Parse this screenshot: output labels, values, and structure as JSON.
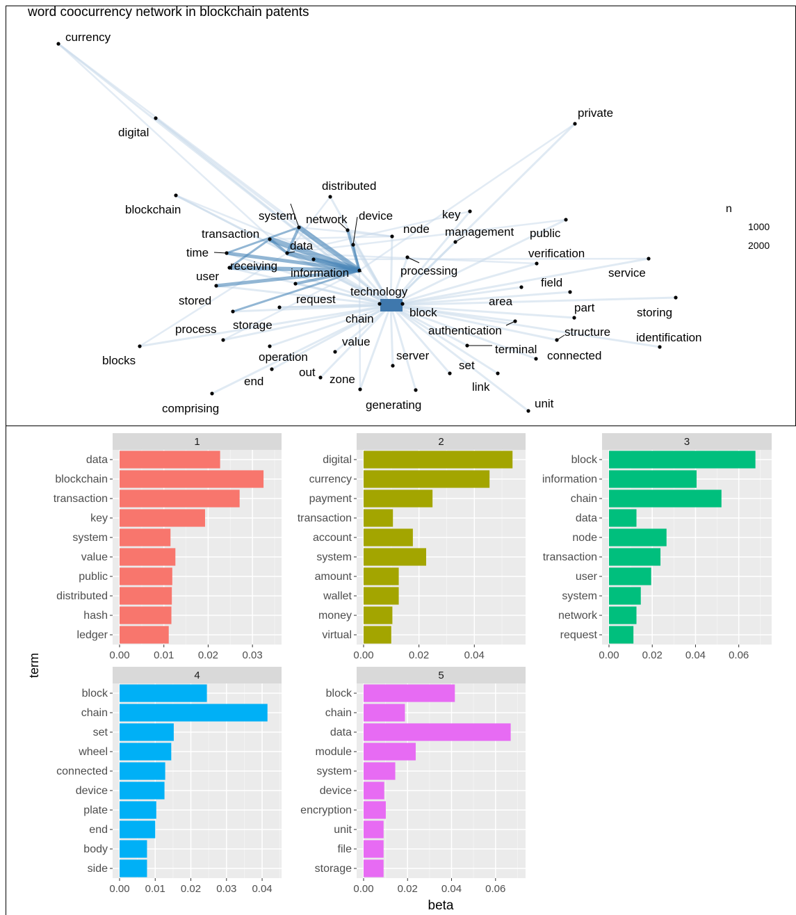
{
  "network": {
    "title": "word coocurrency network in blockchain patents",
    "legend_title": "n",
    "legend_values": [
      "1000",
      "2000"
    ],
    "nodes": [
      {
        "label": "currency"
      },
      {
        "label": "digital"
      },
      {
        "label": "private"
      },
      {
        "label": "distributed"
      },
      {
        "label": "blockchain"
      },
      {
        "label": "system"
      },
      {
        "label": "network"
      },
      {
        "label": "device"
      },
      {
        "label": "key"
      },
      {
        "label": "node"
      },
      {
        "label": "management"
      },
      {
        "label": "public"
      },
      {
        "label": "transaction"
      },
      {
        "label": "data"
      },
      {
        "label": "time"
      },
      {
        "label": "verification"
      },
      {
        "label": "receiving"
      },
      {
        "label": "user"
      },
      {
        "label": "information"
      },
      {
        "label": "processing"
      },
      {
        "label": "service"
      },
      {
        "label": "field"
      },
      {
        "label": "stored"
      },
      {
        "label": "request"
      },
      {
        "label": "technology"
      },
      {
        "label": "area"
      },
      {
        "label": "part"
      },
      {
        "label": "storing"
      },
      {
        "label": "block"
      },
      {
        "label": "chain"
      },
      {
        "label": "storage"
      },
      {
        "label": "process"
      },
      {
        "label": "authentication"
      },
      {
        "label": "structure"
      },
      {
        "label": "identification"
      },
      {
        "label": "value"
      },
      {
        "label": "terminal"
      },
      {
        "label": "blocks"
      },
      {
        "label": "operation"
      },
      {
        "label": "server"
      },
      {
        "label": "connected"
      },
      {
        "label": "set"
      },
      {
        "label": "out"
      },
      {
        "label": "zone"
      },
      {
        "label": "end"
      },
      {
        "label": "link"
      },
      {
        "label": "generating"
      },
      {
        "label": "unit"
      },
      {
        "label": "comprising"
      }
    ]
  },
  "chart_data": [
    {
      "type": "bar",
      "orientation": "horizontal",
      "facet": "1",
      "color": "#F8766D",
      "categories": [
        "data",
        "blockchain",
        "transaction",
        "key",
        "system",
        "value",
        "public",
        "distributed",
        "hash",
        "ledger"
      ],
      "values": [
        0.0227,
        0.0325,
        0.0271,
        0.0193,
        0.0115,
        0.0126,
        0.0119,
        0.0118,
        0.0117,
        0.0111
      ],
      "xlim": [
        0,
        0.035
      ],
      "xticks": [
        "0.00",
        "0.01",
        "0.02",
        "0.03"
      ]
    },
    {
      "type": "bar",
      "orientation": "horizontal",
      "facet": "2",
      "color": "#A3A500",
      "categories": [
        "digital",
        "currency",
        "payment",
        "transaction",
        "account",
        "system",
        "amount",
        "wallet",
        "money",
        "virtual"
      ],
      "values": [
        0.0538,
        0.0455,
        0.0249,
        0.0106,
        0.0178,
        0.0226,
        0.0127,
        0.0127,
        0.0104,
        0.01
      ],
      "xlim": [
        0,
        0.056
      ],
      "xticks": [
        "0.00",
        "0.02",
        "0.04"
      ]
    },
    {
      "type": "bar",
      "orientation": "horizontal",
      "facet": "3",
      "color": "#00BF7D",
      "categories": [
        "block",
        "information",
        "chain",
        "data",
        "node",
        "transaction",
        "user",
        "system",
        "network",
        "request"
      ],
      "values": [
        0.0677,
        0.0405,
        0.052,
        0.0127,
        0.0266,
        0.0238,
        0.0195,
        0.0147,
        0.0127,
        0.0113
      ],
      "xlim": [
        0,
        0.072
      ],
      "xticks": [
        "0.00",
        "0.02",
        "0.04",
        "0.06"
      ]
    },
    {
      "type": "bar",
      "orientation": "horizontal",
      "facet": "4",
      "color": "#00B0F6",
      "categories": [
        "block",
        "chain",
        "set",
        "wheel",
        "connected",
        "device",
        "plate",
        "end",
        "body",
        "side"
      ],
      "values": [
        0.0245,
        0.0415,
        0.0152,
        0.0145,
        0.0128,
        0.0126,
        0.0103,
        0.01,
        0.0077,
        0.0077
      ],
      "xlim": [
        0,
        0.0435
      ],
      "xticks": [
        "0.00",
        "0.01",
        "0.02",
        "0.03",
        "0.04"
      ]
    },
    {
      "type": "bar",
      "orientation": "horizontal",
      "facet": "5",
      "color": "#E76BF3",
      "categories": [
        "block",
        "chain",
        "data",
        "module",
        "system",
        "device",
        "encryption",
        "unit",
        "file",
        "storage"
      ],
      "values": [
        0.0415,
        0.0188,
        0.0669,
        0.0237,
        0.0144,
        0.0094,
        0.0101,
        0.0091,
        0.0091,
        0.0091
      ],
      "xlim": [
        0,
        0.0705
      ],
      "xticks": [
        "0.00",
        "0.02",
        "0.04",
        "0.06"
      ]
    }
  ],
  "axes": {
    "ylabel": "term",
    "xlabel": "beta"
  }
}
